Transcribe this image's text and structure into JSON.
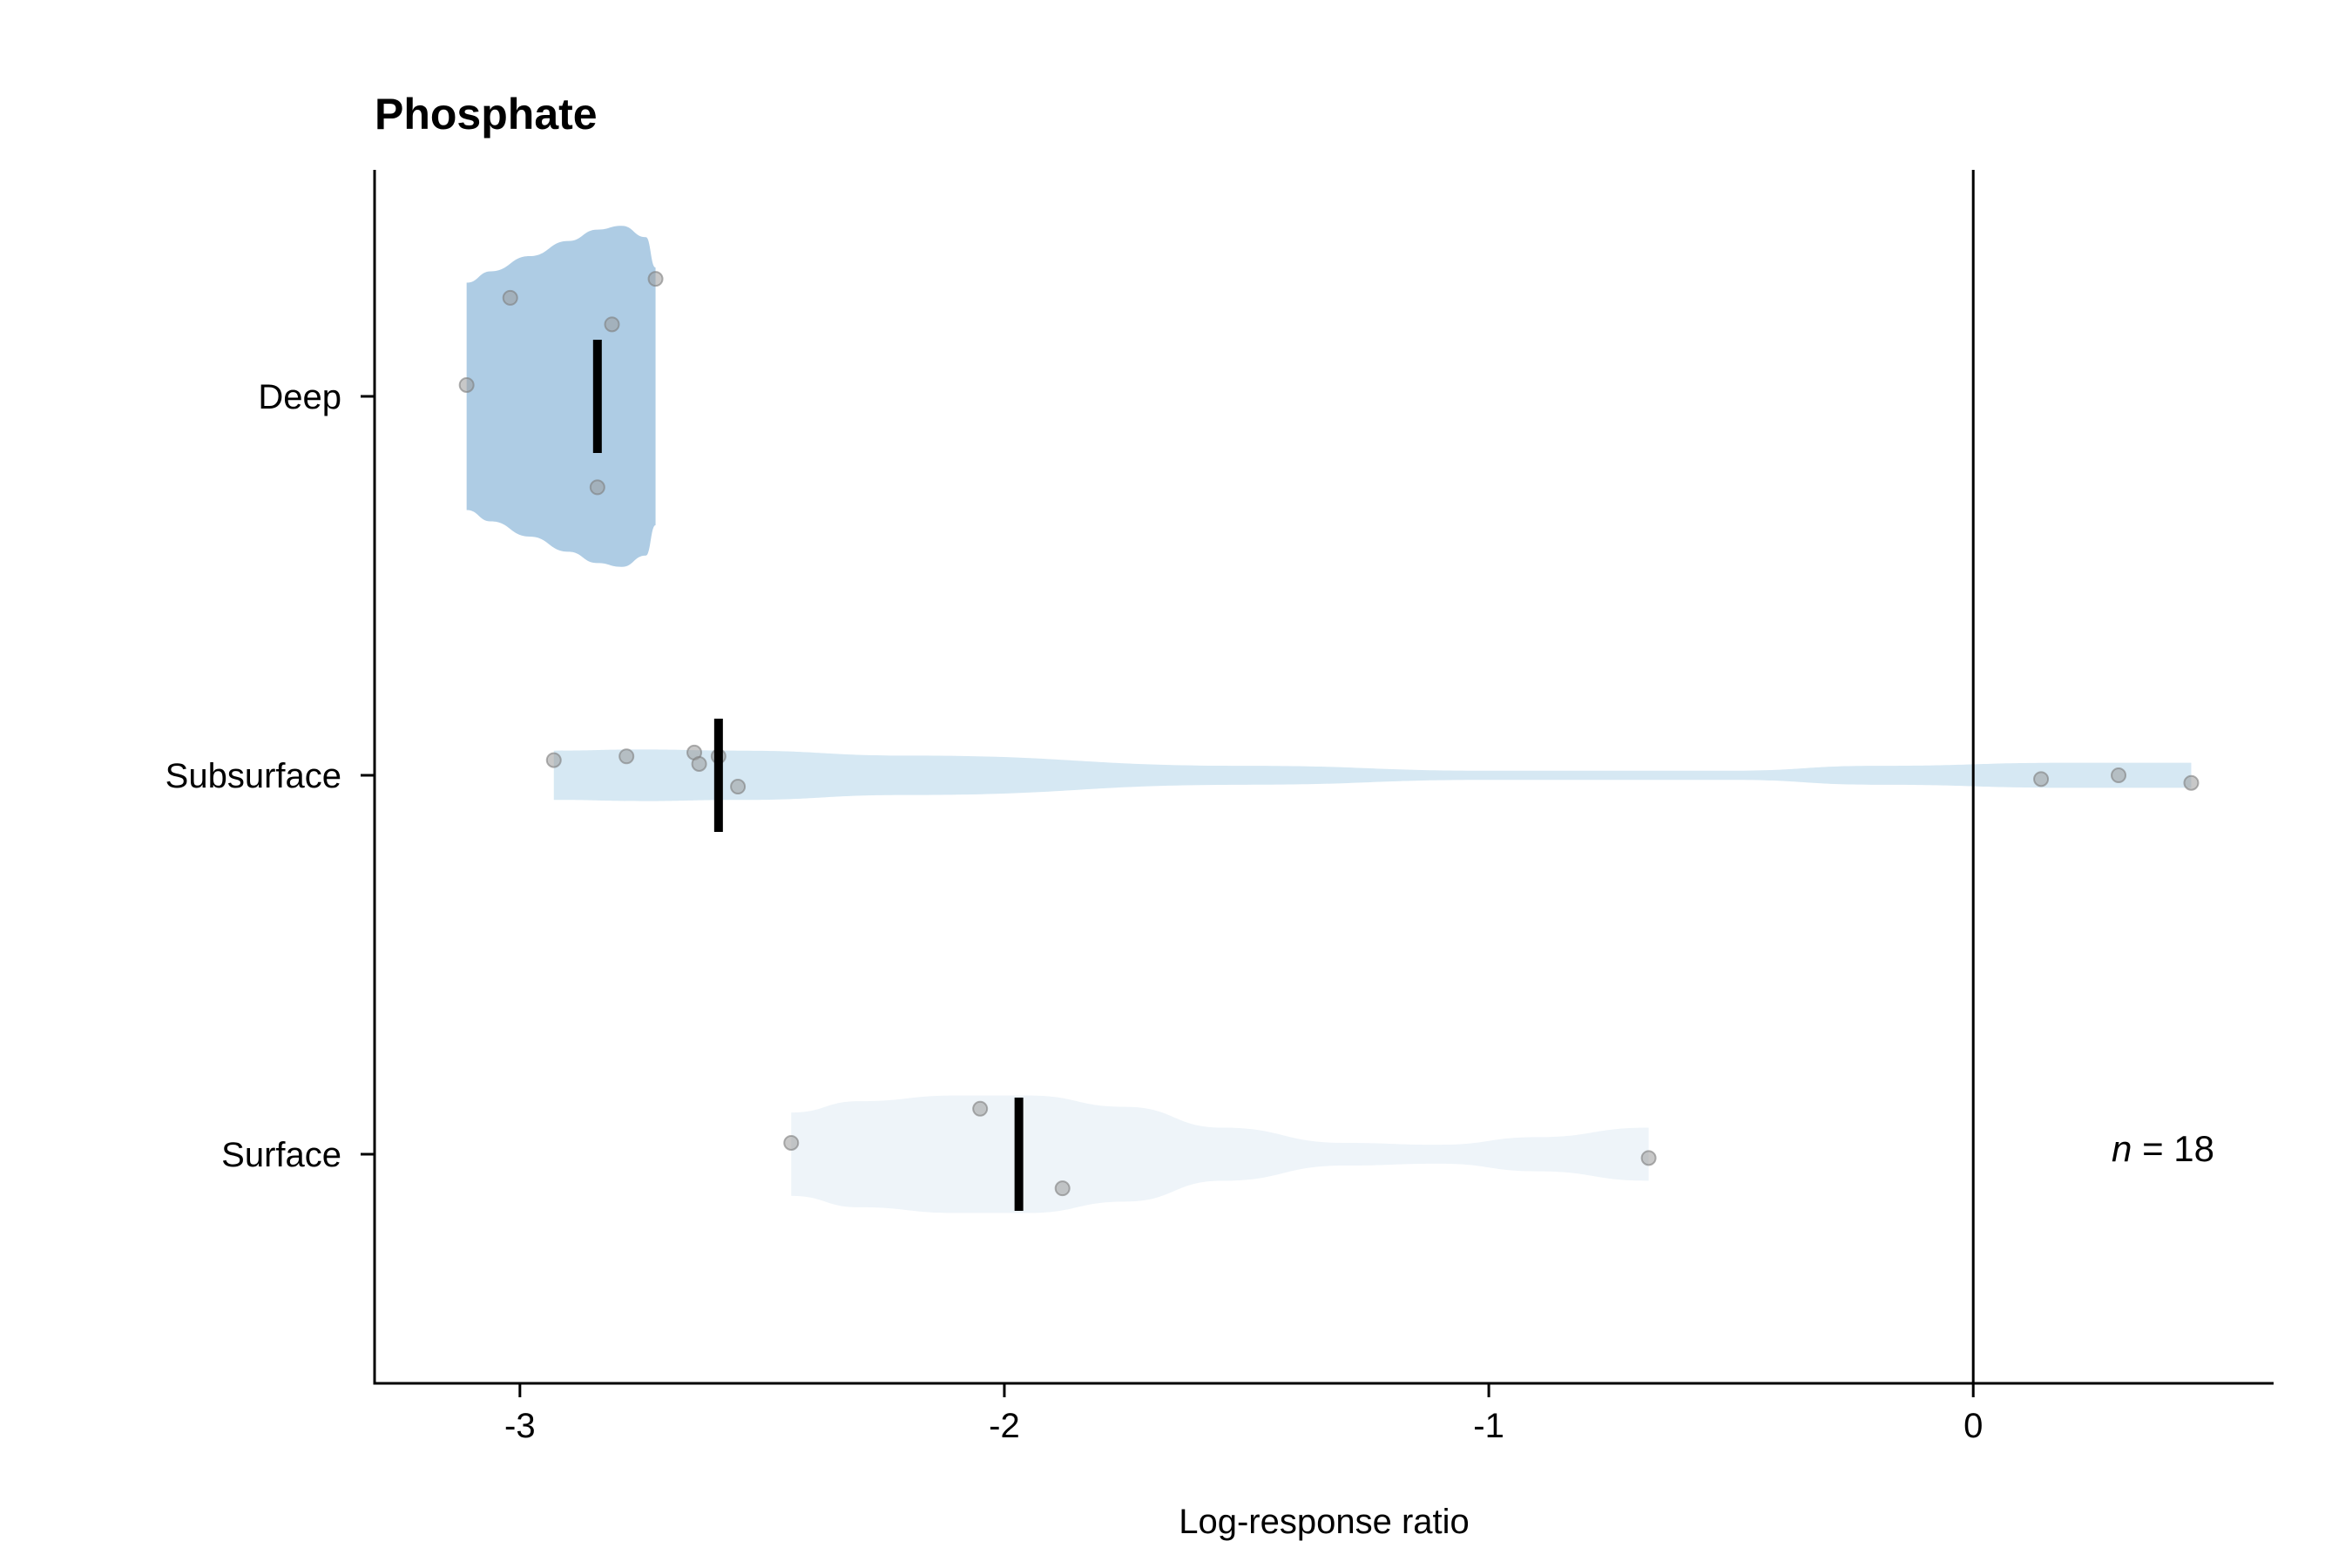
{
  "chart_data": {
    "type": "violin",
    "title": "Phosphate",
    "xlabel": "Log-response ratio",
    "ylabel": "",
    "xlim": [
      -3.3,
      0.62
    ],
    "x_ticks": [
      -3,
      -2,
      -1,
      0
    ],
    "x_tick_labels": [
      "-3",
      "-2",
      "-1",
      "0"
    ],
    "reference_line_x": 0,
    "grid": false,
    "legend": "none",
    "annotation": {
      "italic": "n",
      "text": " = 18"
    },
    "categories": [
      "Deep",
      "Subsurface",
      "Surface"
    ],
    "series": [
      {
        "name": "Deep",
        "color": "#aecce4",
        "mean": -2.84,
        "points": [
          {
            "x": -3.11,
            "jitter": 0.03
          },
          {
            "x": -3.02,
            "jitter": 0.26
          },
          {
            "x": -2.81,
            "jitter": 0.19
          },
          {
            "x": -2.72,
            "jitter": 0.31
          },
          {
            "x": -2.84,
            "jitter": -0.24
          }
        ],
        "violin": [
          {
            "x": -3.11,
            "w": 0.3
          },
          {
            "x": -3.06,
            "w": 0.33
          },
          {
            "x": -2.98,
            "w": 0.37
          },
          {
            "x": -2.9,
            "w": 0.41
          },
          {
            "x": -2.84,
            "w": 0.44
          },
          {
            "x": -2.79,
            "w": 0.45
          },
          {
            "x": -2.74,
            "w": 0.42
          },
          {
            "x": -2.72,
            "w": 0.34
          }
        ]
      },
      {
        "name": "Subsurface",
        "color": "#d6e8f3",
        "mean": -2.59,
        "points": [
          {
            "x": -2.93,
            "jitter": 0.04
          },
          {
            "x": -2.78,
            "jitter": 0.05
          },
          {
            "x": -2.64,
            "jitter": 0.06
          },
          {
            "x": -2.63,
            "jitter": 0.03
          },
          {
            "x": -2.59,
            "jitter": 0.05
          },
          {
            "x": -2.55,
            "jitter": -0.03
          },
          {
            "x": 0.14,
            "jitter": -0.01
          },
          {
            "x": 0.3,
            "jitter": 0.0
          },
          {
            "x": 0.45,
            "jitter": -0.02
          }
        ],
        "violin": [
          {
            "x": -2.93,
            "w": 0.065
          },
          {
            "x": -2.75,
            "w": 0.068
          },
          {
            "x": -2.55,
            "w": 0.065
          },
          {
            "x": -2.2,
            "w": 0.052
          },
          {
            "x": -1.5,
            "w": 0.025
          },
          {
            "x": -1.0,
            "w": 0.012
          },
          {
            "x": -0.5,
            "w": 0.012
          },
          {
            "x": -0.2,
            "w": 0.025
          },
          {
            "x": 0.2,
            "w": 0.033
          },
          {
            "x": 0.45,
            "w": 0.033
          }
        ]
      },
      {
        "name": "Surface",
        "color": "#eef4f9",
        "mean": -1.97,
        "points": [
          {
            "x": -2.44,
            "jitter": 0.03
          },
          {
            "x": -2.05,
            "jitter": 0.12
          },
          {
            "x": -1.88,
            "jitter": -0.09
          },
          {
            "x": -0.67,
            "jitter": -0.01
          }
        ],
        "violin": [
          {
            "x": -2.44,
            "w": 0.11
          },
          {
            "x": -2.3,
            "w": 0.14
          },
          {
            "x": -2.1,
            "w": 0.155
          },
          {
            "x": -1.95,
            "w": 0.155
          },
          {
            "x": -1.75,
            "w": 0.125
          },
          {
            "x": -1.55,
            "w": 0.07
          },
          {
            "x": -1.3,
            "w": 0.03
          },
          {
            "x": -1.1,
            "w": 0.025
          },
          {
            "x": -0.9,
            "w": 0.045
          },
          {
            "x": -0.67,
            "w": 0.07
          }
        ]
      }
    ]
  }
}
